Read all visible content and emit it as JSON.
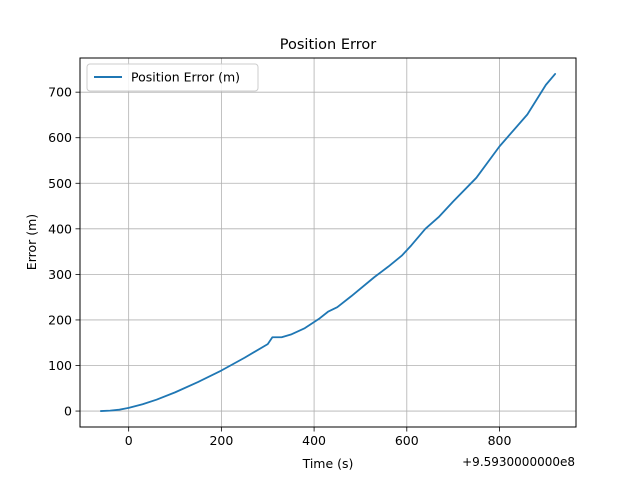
{
  "chart_data": {
    "type": "line",
    "title": "Position Error",
    "xlabel": "Time (s)",
    "ylabel": "Error (m)",
    "x_offset_label": "+9.5930000000e8",
    "xlim": [
      -105,
      965
    ],
    "ylim": [
      -35,
      775
    ],
    "x_ticks": [
      0,
      200,
      400,
      600,
      800
    ],
    "x_tick_labels": [
      "0",
      "200",
      "400",
      "600",
      "800"
    ],
    "y_ticks": [
      0,
      100,
      200,
      300,
      400,
      500,
      600,
      700
    ],
    "y_tick_labels": [
      "0",
      "100",
      "200",
      "300",
      "400",
      "500",
      "600",
      "700"
    ],
    "grid": true,
    "legend_position": "top-left",
    "series": [
      {
        "name": "Position Error (m)",
        "color": "#1f77b4",
        "x": [
          -60,
          -40,
          -20,
          0,
          30,
          60,
          100,
          150,
          200,
          250,
          300,
          310,
          330,
          350,
          380,
          410,
          430,
          450,
          480,
          530,
          560,
          590,
          610,
          640,
          670,
          700,
          750,
          800,
          860,
          900,
          920
        ],
        "y": [
          0,
          1,
          3,
          7,
          15,
          25,
          41,
          64,
          89,
          117,
          147,
          162,
          162,
          168,
          182,
          202,
          218,
          228,
          252,
          294,
          317,
          342,
          364,
          400,
          427,
          460,
          512,
          581,
          651,
          716,
          740
        ]
      }
    ]
  }
}
